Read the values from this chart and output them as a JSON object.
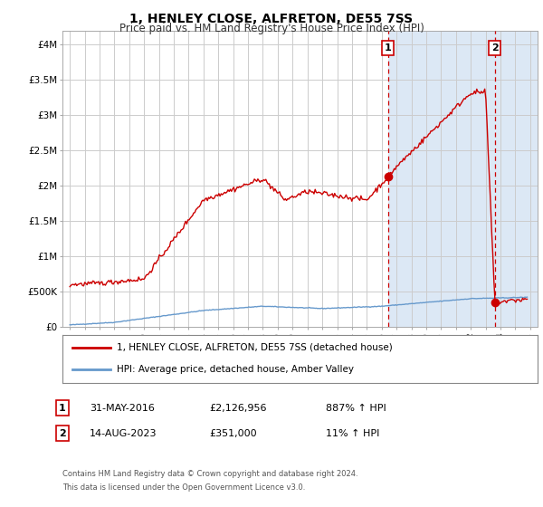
{
  "title": "1, HENLEY CLOSE, ALFRETON, DE55 7SS",
  "subtitle": "Price paid vs. HM Land Registry's House Price Index (HPI)",
  "legend_line1": "1, HENLEY CLOSE, ALFRETON, DE55 7SS (detached house)",
  "legend_line2": "HPI: Average price, detached house, Amber Valley",
  "annotation1_label": "1",
  "annotation1_date": "31-MAY-2016",
  "annotation1_price": "£2,126,956",
  "annotation1_hpi": "887% ↑ HPI",
  "annotation2_label": "2",
  "annotation2_date": "14-AUG-2023",
  "annotation2_price": "£351,000",
  "annotation2_hpi": "11% ↑ HPI",
  "footnote1": "Contains HM Land Registry data © Crown copyright and database right 2024.",
  "footnote2": "This data is licensed under the Open Government Licence v3.0.",
  "xlim": [
    1994.5,
    2026.5
  ],
  "ylim": [
    0,
    4200000
  ],
  "hpi_line_color": "#6699cc",
  "price_line_color": "#cc0000",
  "dashed_line_color": "#cc0000",
  "bg_highlight_color": "#dce8f5",
  "grid_color": "#cccccc",
  "annotation_box_color": "#cc0000",
  "point1_x": 2016.42,
  "point1_y": 2126956,
  "point2_x": 2023.62,
  "point2_y": 351000,
  "highlight_start": 2016.42,
  "highlight_end": 2026.5,
  "ytick_vals": [
    0,
    500000,
    1000000,
    1500000,
    2000000,
    2500000,
    3000000,
    3500000,
    4000000
  ],
  "ytick_labels": [
    "£0",
    "£500K",
    "£1M",
    "£1.5M",
    "£2M",
    "£2.5M",
    "£3M",
    "£3.5M",
    "£4M"
  ]
}
